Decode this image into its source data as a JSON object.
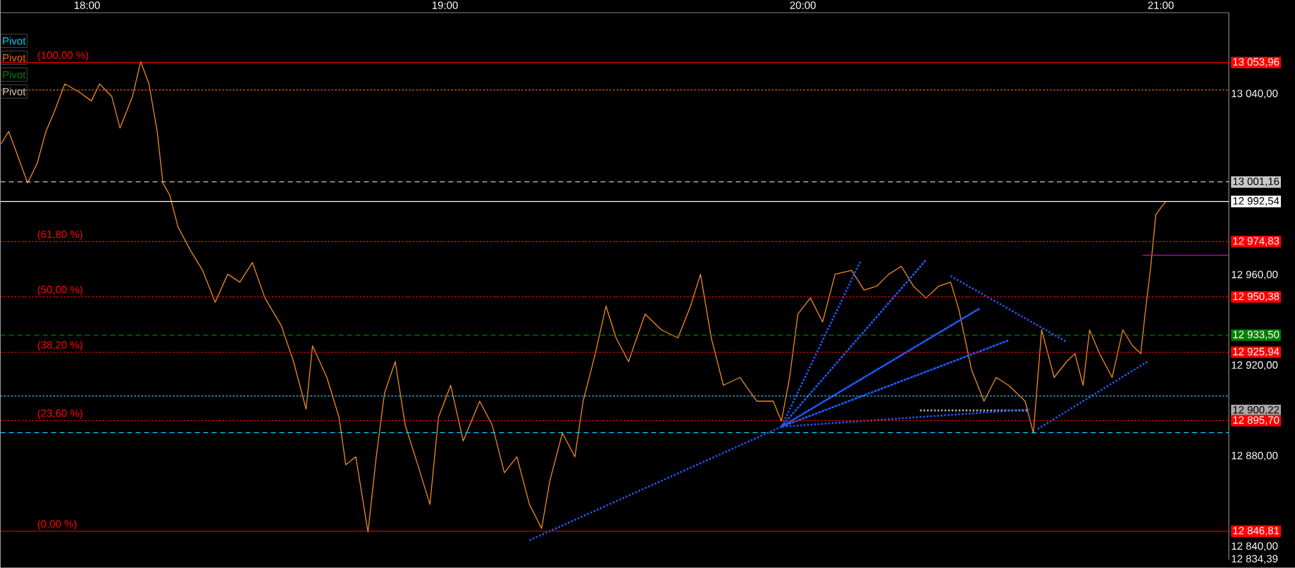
{
  "chart_data": {
    "type": "line",
    "xlim": [
      17.758,
      21.19
    ],
    "ylim": [
      12834.39,
      13076
    ],
    "xticks": [
      {
        "value": 18,
        "label": "18:00"
      },
      {
        "value": 19,
        "label": "19:00"
      },
      {
        "value": 20,
        "label": "20:00"
      },
      {
        "value": 21,
        "label": "21:00"
      }
    ],
    "yticks": [
      {
        "value": 13053.96,
        "label": "13 053,96"
      },
      {
        "value": 13040,
        "label": "13 040,00"
      },
      {
        "value": 13001.16,
        "label": "13 001,16"
      },
      {
        "value": 12992.54,
        "label": "12 992,54"
      },
      {
        "value": 12974.83,
        "label": "12 974,83"
      },
      {
        "value": 12960,
        "label": "12 960,00"
      },
      {
        "value": 12950.38,
        "label": "12 950,38"
      },
      {
        "value": 12933.5,
        "label": "12 933,50"
      },
      {
        "value": 12925.94,
        "label": "12 925,94"
      },
      {
        "value": 12920,
        "label": "12 920,00"
      },
      {
        "value": 12900.22,
        "label": "12 900,22"
      },
      {
        "value": 12895.7,
        "label": "12 895,70"
      },
      {
        "value": 12880,
        "label": "12 880,00"
      },
      {
        "value": 12846.81,
        "label": "12 846,81"
      },
      {
        "value": 12840,
        "label": "12 840,00"
      },
      {
        "value": 12834.39,
        "label": "12 834,39"
      }
    ],
    "legend": "top left",
    "series": [
      {
        "color": "#f08a24",
        "x": [
          17.76,
          17.781,
          17.804,
          17.834,
          17.861,
          17.885,
          17.908,
          17.938,
          17.977,
          18.012,
          18.035,
          18.069,
          18.092,
          18.127,
          18.15,
          18.173,
          18.196,
          18.212,
          18.231,
          18.254,
          18.289,
          18.323,
          18.358,
          18.393,
          18.427,
          18.462,
          18.497,
          18.543,
          18.577,
          18.612,
          18.63,
          18.67,
          18.704,
          18.723,
          18.751,
          18.785,
          18.808,
          18.831,
          18.861,
          18.889,
          18.924,
          18.958,
          18.982,
          19.016,
          19.051,
          19.097,
          19.132,
          19.166,
          19.201,
          19.236,
          19.27,
          19.293,
          19.328,
          19.363,
          19.386,
          19.42,
          19.45,
          19.478,
          19.513,
          19.559,
          19.605,
          19.651,
          19.686,
          19.714,
          19.744,
          19.778,
          19.824,
          19.871,
          19.917,
          19.94,
          19.963,
          19.986,
          20.021,
          20.055,
          20.09,
          20.136,
          20.171,
          20.206,
          20.24,
          20.275,
          20.309,
          20.344,
          20.379,
          20.413,
          20.436,
          20.471,
          20.506,
          20.54,
          20.575,
          20.621,
          20.644,
          20.667,
          20.702,
          20.737,
          20.76,
          20.783,
          20.801,
          20.829,
          20.864,
          20.894,
          20.921,
          20.944,
          20.956,
          20.972,
          20.986,
          21.002,
          21.014
        ],
        "values": [
          13018,
          13023.5,
          13013.7,
          13000.7,
          13009.5,
          13023.5,
          13032,
          13044.5,
          13041,
          13037,
          13044.5,
          13039,
          13025,
          13039,
          13054.4,
          13044.5,
          13023.5,
          13000.7,
          12995.4,
          12981.4,
          12970.9,
          12962.1,
          12948,
          12960.4,
          12956.9,
          12965.6,
          12949.9,
          12937.6,
          12921.8,
          12900.8,
          12928.8,
          12914.8,
          12897.2,
          12876.2,
          12879.7,
          12846.4,
          12879.7,
          12907.8,
          12921.8,
          12893.7,
          12876.2,
          12858.7,
          12897.2,
          12911.3,
          12886.7,
          12904.3,
          12893.7,
          12872.7,
          12879.7,
          12858.7,
          12848.1,
          12869.1,
          12890.2,
          12879.7,
          12904.3,
          12925.3,
          12946.3,
          12932.3,
          12921.8,
          12942.8,
          12935.8,
          12932.3,
          12946.3,
          12960.4,
          12932.3,
          12911.3,
          12914.8,
          12904.3,
          12904.3,
          12895.5,
          12914.8,
          12942.8,
          12949.9,
          12939.3,
          12960.4,
          12962.1,
          12953.4,
          12955.1,
          12960.4,
          12963.9,
          12955.1,
          12949.9,
          12955.1,
          12956.9,
          12944.6,
          12918.3,
          12904.3,
          12914.8,
          12911.3,
          12904.3,
          12890.2,
          12935.8,
          12914.8,
          12921.8,
          12925.3,
          12911.3,
          12935.8,
          12925.3,
          12914.8,
          12935.8,
          12928.8,
          12925.3,
          12942.8,
          12963.9,
          12986.7,
          12990.2,
          12992.5
        ]
      },
      {
        "name": "Pivot",
        "color": "#00d0ff",
        "line_style": "dashed",
        "x": [
          17.758,
          21.19
        ],
        "values": [
          12890.4,
          12890.4
        ]
      },
      {
        "name": "Pivot",
        "color": "#ff6a00",
        "line_style": "dotted",
        "x": [
          17.758,
          21.19
        ],
        "values": [
          13041.8,
          13041.8
        ]
      },
      {
        "name": "Pivot",
        "color": "#008000",
        "line_style": "dashed",
        "x": [
          17.758,
          21.19
        ],
        "values": [
          12933.5,
          12933.5
        ]
      },
      {
        "name": "Pivot",
        "color": "#c8c8c8",
        "line_style": "dashed",
        "x": [
          17.758,
          21.19
        ],
        "values": [
          13001.2,
          13001.2
        ]
      },
      {
        "color": "#a8a8a8",
        "line_style": "dotted",
        "x": [
          20.327,
          20.63
        ],
        "values": [
          12900.2,
          12900.2
        ]
      },
      {
        "color": "#cc00cc",
        "line_style": "solid",
        "x": [
          20.95,
          21.19
        ],
        "values": [
          12968.8,
          12968.8
        ]
      },
      {
        "color": "#1e5bff",
        "line_style": "dotted",
        "x": [
          19.236,
          19.94,
          20.159,
          19.94,
          20.344,
          19.94,
          20.494,
          19.94,
          20.575,
          19.94,
          20.633
        ],
        "values": [
          12842.8,
          12893,
          12965.6,
          12893,
          12966.7,
          12893,
          12945.3,
          12893,
          12931.2,
          12893,
          12900.7
        ]
      },
      {
        "color": "#1e5bff",
        "line_style": "dotted",
        "x": [
          20.413,
          20.737
        ],
        "values": [
          12959.6,
          12930.5
        ]
      },
      {
        "color": "#1e5bff",
        "line_style": "dotted",
        "x": [
          20.656,
          20.963
        ],
        "values": [
          12892,
          12921.8
        ]
      }
    ],
    "ref_lines": [
      {
        "axis": "y",
        "value": 13053.96,
        "color": "#ff0000",
        "line_style": "solid"
      },
      {
        "axis": "y",
        "value": 12974.83,
        "color": "#ff0000",
        "line_style": "dotted"
      },
      {
        "axis": "y",
        "value": 12950.38,
        "color": "#ff0000",
        "line_style": "dotted"
      },
      {
        "axis": "y",
        "value": 12925.94,
        "color": "#ff0000",
        "line_style": "dotted"
      },
      {
        "axis": "y",
        "value": 12895.7,
        "color": "#ff0000",
        "line_style": "dotted"
      },
      {
        "axis": "y",
        "value": 12846.81,
        "color": "#ff0000",
        "line_style": "solid"
      },
      {
        "axis": "y",
        "value": 12906.6,
        "color": "#33ccff",
        "line_style": "dotted"
      },
      {
        "axis": "y",
        "value": 12992.54,
        "color": "#ffffff",
        "line_style": "solid"
      }
    ],
    "annotations": [
      {
        "text": "(100,00 %)",
        "y": 13053.96
      },
      {
        "text": "(61,80 %)",
        "y": 12974.83
      },
      {
        "text": "(50,00 %)",
        "y": 12950.38
      },
      {
        "text": "(38,20 %)",
        "y": 12925.94
      },
      {
        "text": "(23,60 %)",
        "y": 12895.7
      },
      {
        "text": "(0,00 %)",
        "y": 12846.81
      }
    ]
  }
}
